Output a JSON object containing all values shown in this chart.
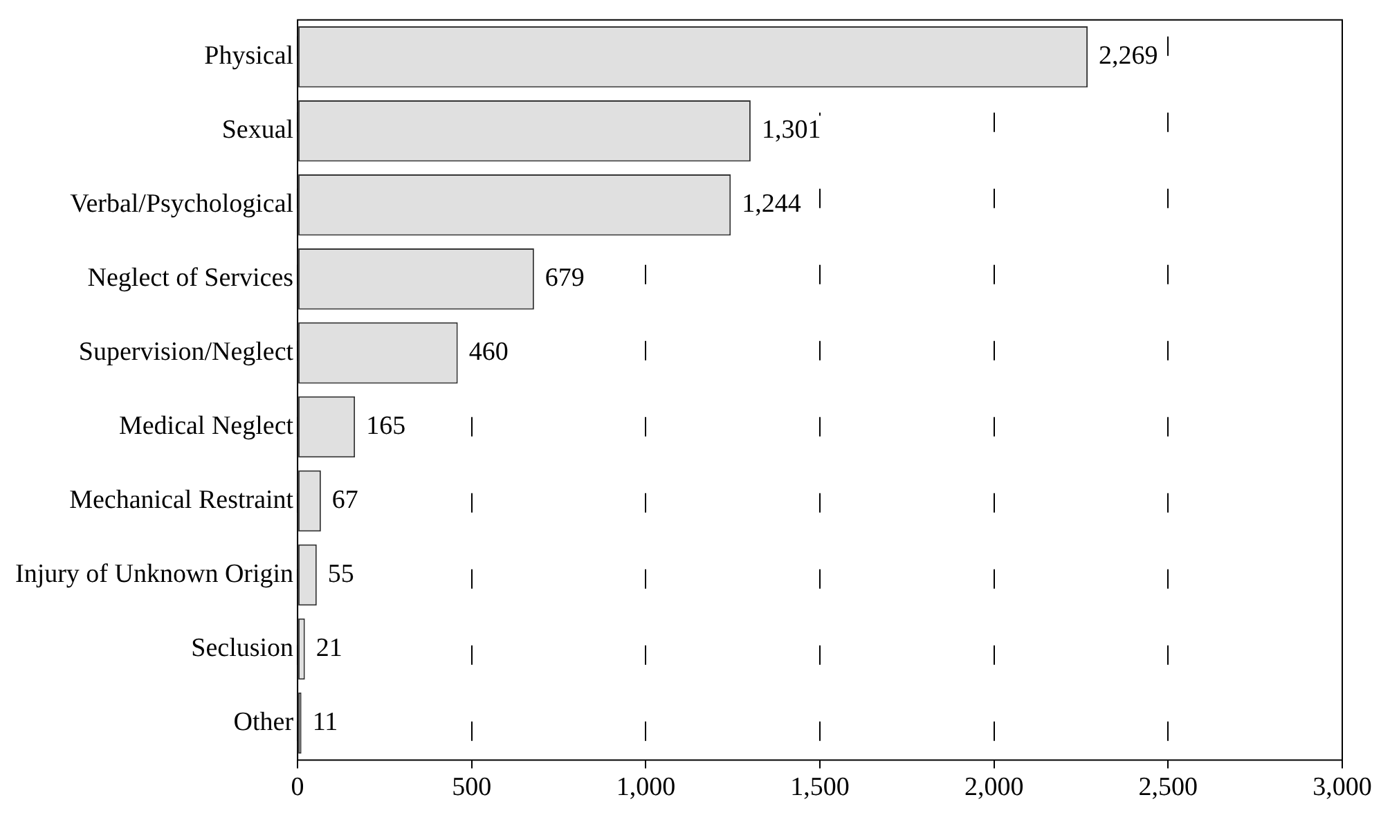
{
  "chart_data": {
    "type": "bar",
    "orientation": "horizontal",
    "categories": [
      "Physical",
      "Sexual",
      "Verbal/Psychological",
      "Neglect of Services",
      "Supervision/Neglect",
      "Medical Neglect",
      "Mechanical Restraint",
      "Injury of Unknown Origin",
      "Seclusion",
      "Other"
    ],
    "values": [
      2269,
      1301,
      1244,
      679,
      460,
      165,
      67,
      55,
      21,
      11
    ],
    "value_labels": [
      "2,269",
      "1,301",
      "1,244",
      "679",
      "460",
      "165",
      "67",
      "55",
      "21",
      "11"
    ],
    "color": "#e0e0e0",
    "xlim": [
      0,
      3000
    ],
    "xticks": [
      {
        "value": 0,
        "label": "0"
      },
      {
        "value": 500,
        "label": "500"
      },
      {
        "value": 1000,
        "label": "1,000"
      },
      {
        "value": 1500,
        "label": "1,500"
      },
      {
        "value": 2000,
        "label": "2,000"
      },
      {
        "value": 2500,
        "label": "2,500"
      },
      {
        "value": 3000,
        "label": "3,000"
      }
    ],
    "grid": "x",
    "legend": false
  }
}
